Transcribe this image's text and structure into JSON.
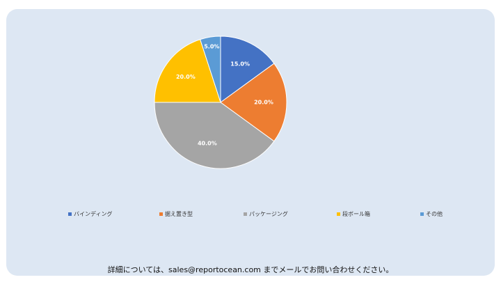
{
  "chart_data": {
    "type": "pie",
    "title": "",
    "start_angle_deg": 0,
    "direction": "clockwise",
    "slices": [
      {
        "label": "バインディング",
        "value": 15.0,
        "display": "15.0%",
        "color": "#4472c4"
      },
      {
        "label": "据え置き型",
        "value": 20.0,
        "display": "20.0%",
        "color": "#ed7d31"
      },
      {
        "label": "パッケージング",
        "value": 40.0,
        "display": "40.0%",
        "color": "#a5a5a5"
      },
      {
        "label": "段ボール箱",
        "value": 20.0,
        "display": "20.0%",
        "color": "#ffc000"
      },
      {
        "label": "その他",
        "value": 5.0,
        "display": "5.0%",
        "color": "#5b9bd5"
      }
    ],
    "legend_position": "bottom"
  },
  "footer": {
    "text": "詳細については、sales@reportocean.com までメールでお問い合わせください。"
  }
}
